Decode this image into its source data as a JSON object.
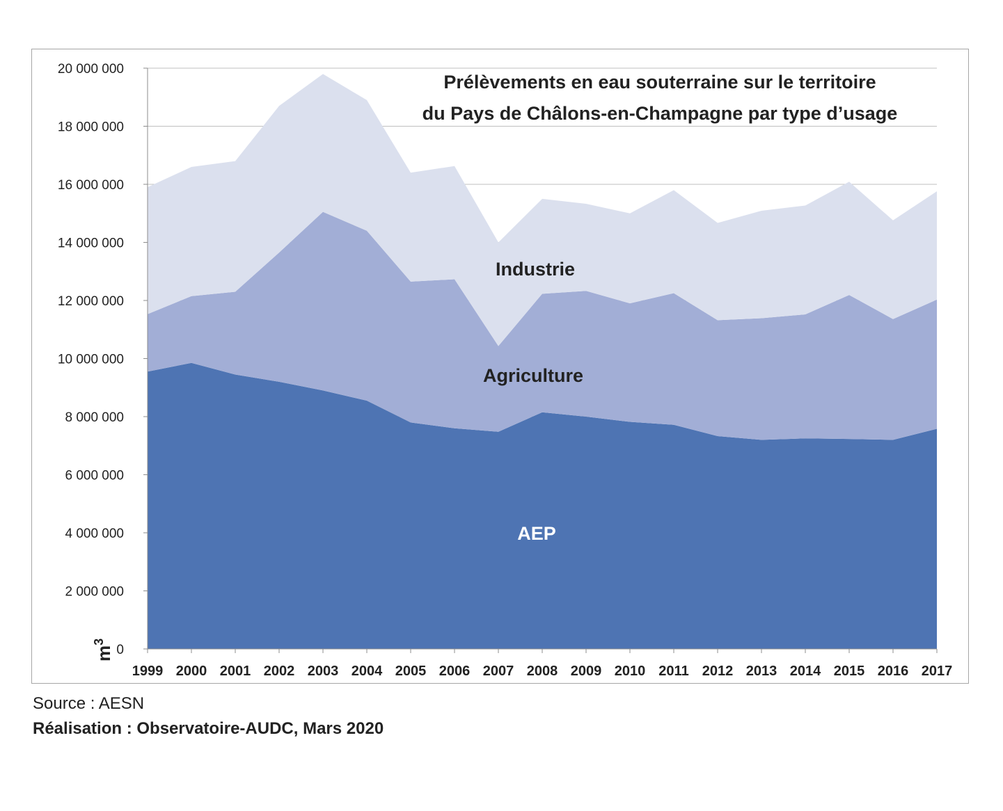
{
  "footer": {
    "source": "Source : AESN",
    "credit": "Réalisation : Observatoire-AUDC, Mars 2020"
  },
  "chart_data": {
    "type": "area",
    "stacked": true,
    "title_lines": [
      "Prélèvements en eau souterraine sur le territoire",
      "du Pays de Châlons-en-Champagne par type d’usage"
    ],
    "ylabel": "m",
    "ylabel_superscript": "3",
    "xlabel": "",
    "ylim": [
      0,
      20000000
    ],
    "ytick_step": 2000000,
    "ytick_labels": [
      "0",
      "2 000 000",
      "4 000 000",
      "6 000 000",
      "8 000 000",
      "10 000 000",
      "12 000 000",
      "14 000 000",
      "16 000 000",
      "18 000 000",
      "20 000 000"
    ],
    "grid": "horizontal",
    "legend": "none",
    "x": [
      "1999",
      "2000",
      "2001",
      "2002",
      "2003",
      "2004",
      "2005",
      "2006",
      "2007",
      "2008",
      "2009",
      "2010",
      "2011",
      "2012",
      "2013",
      "2014",
      "2015",
      "2016",
      "2017"
    ],
    "series": [
      {
        "name": "AEP",
        "color": "#4e74b3",
        "label_color": "#ffffff",
        "values": [
          9550000,
          9850000,
          9450000,
          9200000,
          8900000,
          8550000,
          7800000,
          7600000,
          7480000,
          8150000,
          8000000,
          7820000,
          7720000,
          7330000,
          7200000,
          7250000,
          7230000,
          7200000,
          7580000
        ]
      },
      {
        "name": "Agriculture",
        "color": "#a2aed6",
        "label_color": "#222222",
        "values": [
          1980000,
          2300000,
          2850000,
          4450000,
          6150000,
          5850000,
          4850000,
          5130000,
          2950000,
          4080000,
          4330000,
          4080000,
          4530000,
          3990000,
          4190000,
          4270000,
          4960000,
          4160000,
          4450000
        ]
      },
      {
        "name": "Industrie",
        "color": "#dbe0ee",
        "label_color": "#222222",
        "values": [
          4370000,
          4450000,
          4500000,
          5050000,
          4750000,
          4500000,
          3750000,
          3900000,
          3570000,
          3270000,
          3000000,
          3100000,
          3550000,
          3350000,
          3700000,
          3750000,
          3900000,
          3400000,
          3730000
        ]
      }
    ]
  }
}
